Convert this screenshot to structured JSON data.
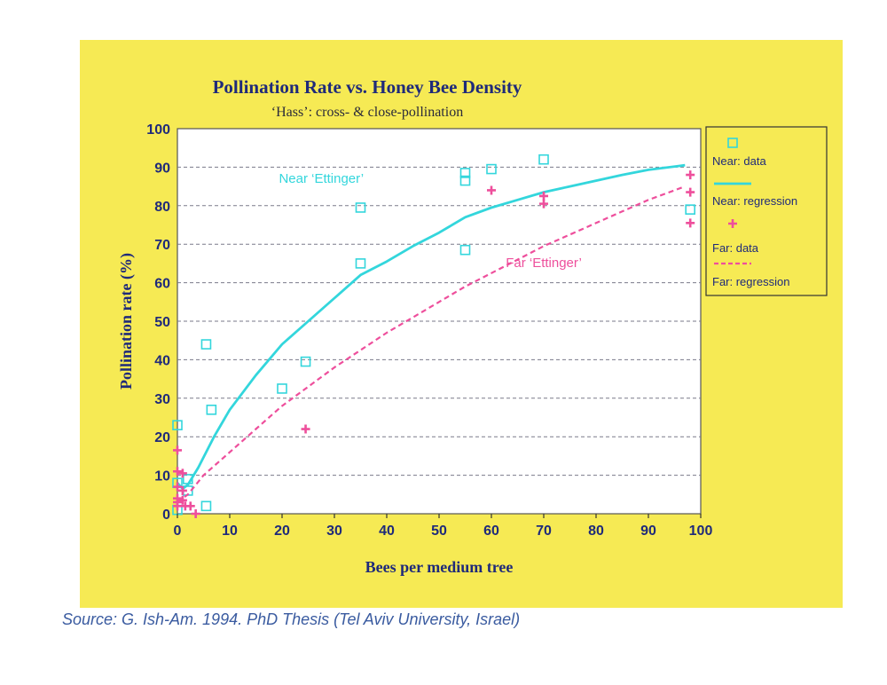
{
  "chart_data": {
    "type": "scatter",
    "title": "Pollination Rate vs. Honey Bee Density",
    "subtitle": "‘Hass’: cross- & close-pollination",
    "xlabel": "Bees per medium tree",
    "ylabel": "Pollination rate (%)",
    "xlim": [
      0,
      100
    ],
    "ylim": [
      0,
      100
    ],
    "x_ticks": [
      0,
      10,
      20,
      30,
      40,
      50,
      60,
      70,
      80,
      90,
      100
    ],
    "y_ticks": [
      0,
      10,
      20,
      30,
      40,
      50,
      60,
      70,
      80,
      90,
      100
    ],
    "grid": "horizontal dashed",
    "legend_position": "right",
    "colors": {
      "near": "#33d6dc",
      "far": "#ee4f9c",
      "panel": "#f6ea54",
      "text": "#1f2a7a"
    },
    "series": [
      {
        "name": "Near: data",
        "kind": "points",
        "marker": "square",
        "points": [
          [
            0,
            23
          ],
          [
            0,
            8
          ],
          [
            0,
            1
          ],
          [
            2,
            9
          ],
          [
            2,
            6
          ],
          [
            5.5,
            44
          ],
          [
            5.5,
            2
          ],
          [
            6.5,
            27
          ],
          [
            20,
            32.5
          ],
          [
            24.5,
            39.5
          ],
          [
            35,
            79.5
          ],
          [
            35,
            65
          ],
          [
            55,
            88.5
          ],
          [
            55,
            86.5
          ],
          [
            55,
            68.5
          ],
          [
            60,
            89.5
          ],
          [
            70,
            92
          ],
          [
            98,
            79
          ]
        ]
      },
      {
        "name": "Near: regression",
        "kind": "line",
        "style": "solid",
        "points": [
          [
            0,
            8
          ],
          [
            1,
            6.5
          ],
          [
            2,
            7.5
          ],
          [
            4,
            12
          ],
          [
            7,
            20
          ],
          [
            10,
            27
          ],
          [
            15,
            36
          ],
          [
            20,
            44
          ],
          [
            25,
            50
          ],
          [
            30,
            56
          ],
          [
            35,
            62
          ],
          [
            40,
            65.5
          ],
          [
            45,
            69.5
          ],
          [
            50,
            73
          ],
          [
            55,
            77
          ],
          [
            60,
            79.5
          ],
          [
            65,
            81.5
          ],
          [
            70,
            83.5
          ],
          [
            75,
            85
          ],
          [
            80,
            86.5
          ],
          [
            85,
            88
          ],
          [
            90,
            89.3
          ],
          [
            97,
            90.5
          ]
        ]
      },
      {
        "name": "Far: data",
        "kind": "points",
        "marker": "plus",
        "points": [
          [
            0,
            16.5
          ],
          [
            0,
            11
          ],
          [
            0,
            7
          ],
          [
            0,
            4
          ],
          [
            0,
            3
          ],
          [
            0,
            2
          ],
          [
            1,
            10.5
          ],
          [
            1,
            6
          ],
          [
            1,
            3.5
          ],
          [
            1.5,
            2
          ],
          [
            2.5,
            2
          ],
          [
            3.5,
            0
          ],
          [
            24.5,
            22
          ],
          [
            60,
            84
          ],
          [
            70,
            82.5
          ],
          [
            70,
            80.5
          ],
          [
            98,
            88
          ],
          [
            98,
            83.5
          ],
          [
            98,
            75.5
          ]
        ]
      },
      {
        "name": "Far: regression",
        "kind": "line",
        "style": "dashed",
        "points": [
          [
            0,
            3
          ],
          [
            2,
            5
          ],
          [
            5,
            10
          ],
          [
            10,
            16
          ],
          [
            15,
            22
          ],
          [
            20,
            28
          ],
          [
            25,
            33
          ],
          [
            30,
            38
          ],
          [
            35,
            42.5
          ],
          [
            40,
            47
          ],
          [
            45,
            51
          ],
          [
            50,
            55
          ],
          [
            55,
            59
          ],
          [
            60,
            62.5
          ],
          [
            65,
            66
          ],
          [
            70,
            69.5
          ],
          [
            75,
            72.5
          ],
          [
            80,
            75.5
          ],
          [
            85,
            78.5
          ],
          [
            90,
            81.5
          ],
          [
            97,
            85
          ]
        ]
      }
    ],
    "annotations": [
      {
        "text": "Near ‘Ettinger’",
        "x": 27.5,
        "y": 86,
        "color": "#33d6dc"
      },
      {
        "text": "Far ‘Ettinger’",
        "x": 70,
        "y": 64,
        "color": "#ee4f9c"
      }
    ]
  },
  "source": "Source: G. Ish-Am. 1994. PhD Thesis (Tel Aviv University, Israel)"
}
